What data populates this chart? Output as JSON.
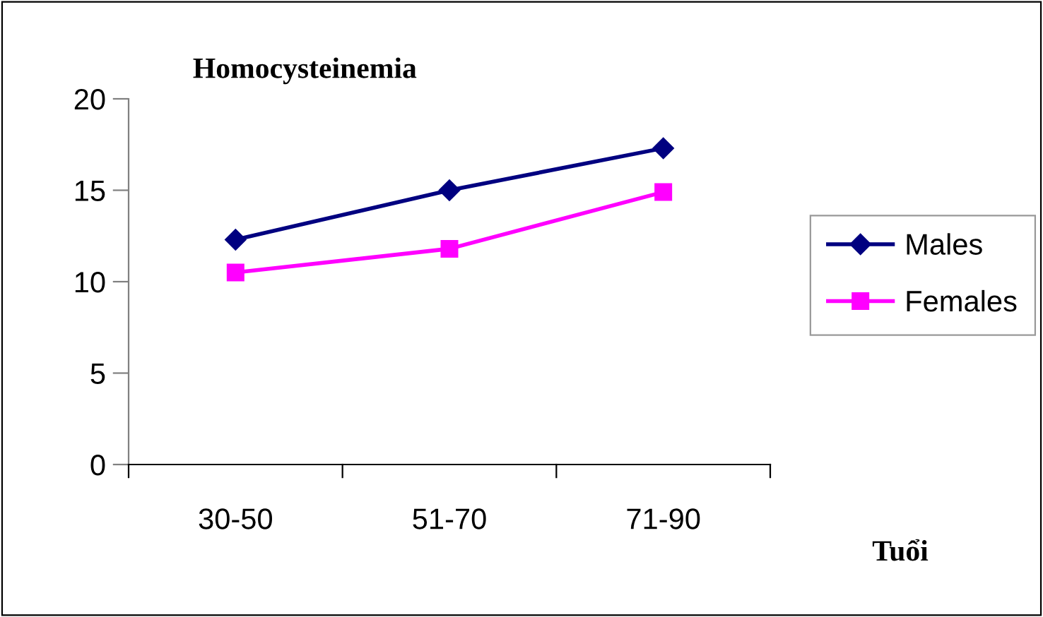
{
  "chart_data": {
    "type": "line",
    "title": "Homocysteinemia",
    "xlabel": "Tuổi",
    "categories": [
      "30-50",
      "51-70",
      "71-90"
    ],
    "series": [
      {
        "name": "Males",
        "color": "#000080",
        "marker": "diamond",
        "values": [
          12.3,
          15.0,
          17.3
        ]
      },
      {
        "name": "Females",
        "color": "#ff00ff",
        "marker": "square",
        "values": [
          10.5,
          11.8,
          14.9
        ]
      }
    ],
    "ylim": [
      0,
      20
    ],
    "yticks": [
      0,
      5,
      10,
      15,
      20
    ],
    "grid": false,
    "legend": "right",
    "line_style": "solid"
  }
}
